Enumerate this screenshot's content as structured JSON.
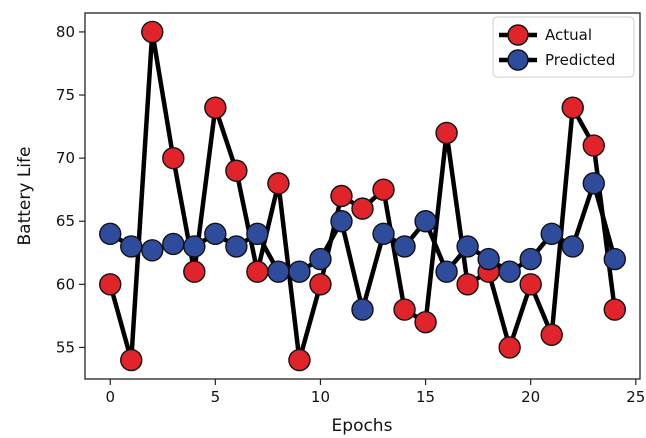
{
  "chart_data": {
    "type": "line",
    "xlabel": "Epochs",
    "ylabel": "Battery Life",
    "xlim": [
      -1.2,
      25.2
    ],
    "ylim": [
      52.5,
      81.5
    ],
    "xticks": [
      0,
      5,
      10,
      15,
      20,
      25
    ],
    "yticks": [
      55,
      60,
      65,
      70,
      75,
      80
    ],
    "grid": false,
    "legend_position": "top-right",
    "x": [
      0,
      1,
      2,
      3,
      4,
      5,
      6,
      7,
      8,
      9,
      10,
      11,
      12,
      13,
      14,
      15,
      16,
      17,
      18,
      19,
      20,
      21,
      22,
      23,
      24
    ],
    "series": [
      {
        "name": "Actual",
        "color": "#e0242a",
        "values": [
          60,
          54,
          80,
          70,
          61,
          74,
          69,
          61,
          68,
          54,
          60,
          67,
          66,
          67.5,
          58,
          57,
          72,
          60,
          61,
          55,
          60,
          56,
          74,
          71,
          58
        ]
      },
      {
        "name": "Predicted",
        "color": "#2f4c9c",
        "values": [
          64,
          63,
          62.7,
          63.2,
          63,
          64,
          63,
          64,
          61,
          61,
          62,
          65,
          58,
          64,
          63,
          65,
          61,
          63,
          62,
          61,
          62,
          64,
          63,
          68,
          62
        ]
      }
    ]
  }
}
